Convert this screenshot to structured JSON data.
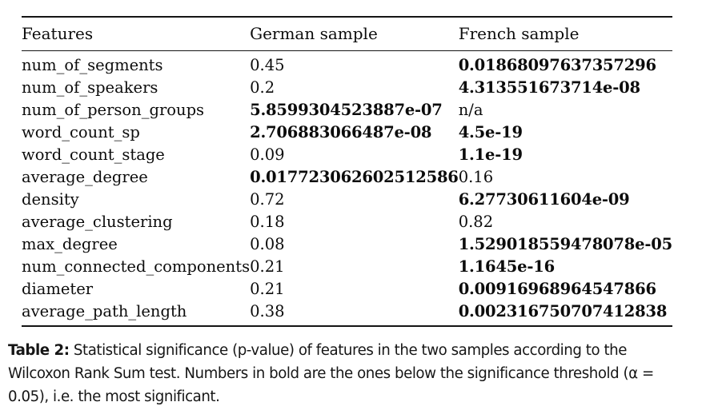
{
  "table": {
    "headers": [
      "Features",
      "German sample",
      "French sample"
    ],
    "rows": [
      {
        "feature": "num_of_segments",
        "german": "0.45",
        "german_bold": false,
        "french": "0.01868097637357296",
        "french_bold": true
      },
      {
        "feature": "num_of_speakers",
        "german": "0.2",
        "german_bold": false,
        "french": "4.313551673714e-08",
        "french_bold": true
      },
      {
        "feature": "num_of_person_groups",
        "german": "5.8599304523887e-07",
        "german_bold": true,
        "french": "n/a",
        "french_bold": false
      },
      {
        "feature": "word_count_sp",
        "german": "2.706883066487e-08",
        "german_bold": true,
        "french": "4.5e-19",
        "french_bold": true
      },
      {
        "feature": "word_count_stage",
        "german": "0.09",
        "german_bold": false,
        "french": "1.1e-19",
        "french_bold": true
      },
      {
        "feature": "average_degree",
        "german": "0.017723062602512586",
        "german_bold": true,
        "french": "0.16",
        "french_bold": false
      },
      {
        "feature": "density",
        "german": "0.72",
        "german_bold": false,
        "french": "6.27730611604e-09",
        "french_bold": true
      },
      {
        "feature": "average_clustering",
        "german": "0.18",
        "german_bold": false,
        "french": "0.82",
        "french_bold": false
      },
      {
        "feature": "max_degree",
        "german": "0.08",
        "german_bold": false,
        "french": "1.529018559478078e-05",
        "french_bold": true
      },
      {
        "feature": "num_connected_components",
        "german": "0.21",
        "german_bold": false,
        "french": "1.1645e-16",
        "french_bold": true
      },
      {
        "feature": "diameter",
        "german": "0.21",
        "german_bold": false,
        "french": "0.00916968964547866",
        "french_bold": true
      },
      {
        "feature": "average_path_length",
        "german": "0.38",
        "german_bold": false,
        "french": "0.002316750707412838",
        "french_bold": true
      }
    ]
  },
  "caption": {
    "label": "Table 2:",
    "text": " Statistical significance (p-value) of features in the two samples according to the Wilcoxon Rank Sum test. Numbers in bold are the ones below the significance threshold (α = 0.05), i.e. the most significant."
  },
  "colors": {
    "background": "#ffffff",
    "text": "#0c0c0c",
    "rule": "#141414"
  }
}
